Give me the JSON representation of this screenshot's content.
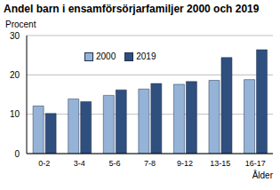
{
  "chart_data": {
    "type": "bar",
    "title": "Andel barn i ensamförsörjarfamiljer 2000 och 2019",
    "y_label": "Procent",
    "x_label": "Ålder",
    "categories": [
      "0-2",
      "3-4",
      "5-6",
      "7-8",
      "9-12",
      "13-15",
      "16-17"
    ],
    "series": [
      {
        "name": "2000",
        "color": "#95b3d7",
        "values": [
          12.1,
          13.9,
          14.8,
          16.4,
          17.6,
          18.6,
          18.8
        ]
      },
      {
        "name": "2019",
        "color": "#2f4f7f",
        "values": [
          10.2,
          13.2,
          16.2,
          17.8,
          18.3,
          24.4,
          26.4
        ]
      }
    ],
    "ylim": [
      0,
      30
    ],
    "yticks": [
      0,
      10,
      20,
      30
    ],
    "grid": true,
    "legend": "top"
  }
}
